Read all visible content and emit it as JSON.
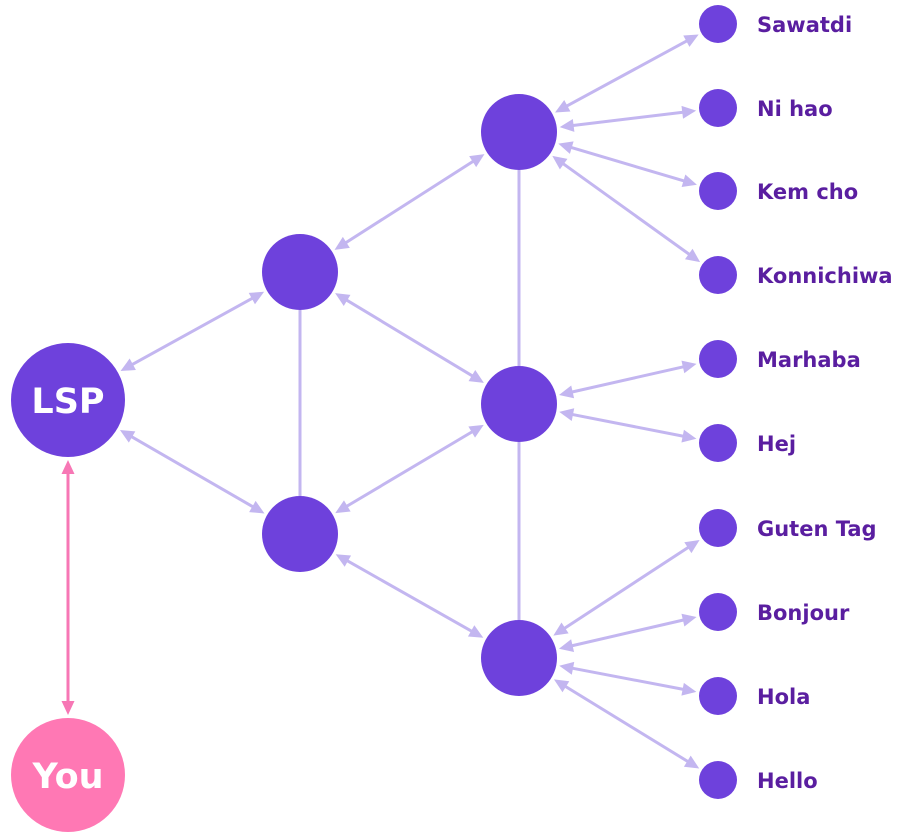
{
  "colors": {
    "node": "#6e41dc",
    "you": "#ff78b4",
    "edge": "#c3b6f0",
    "you_edge": "#f777b5",
    "label": "#5a1ea0",
    "node_text": "#ffffff"
  },
  "nodes": {
    "lsp": {
      "label": "LSP"
    },
    "you": {
      "label": "You"
    },
    "a": {
      "label": ""
    },
    "b": {
      "label": ""
    },
    "c": {
      "label": ""
    },
    "d": {
      "label": ""
    },
    "e": {
      "label": ""
    }
  },
  "leaves": [
    {
      "label": "Sawatdi",
      "parent": "c"
    },
    {
      "label": "Ni hao",
      "parent": "c"
    },
    {
      "label": "Kem cho",
      "parent": "c"
    },
    {
      "label": "Konnichiwa",
      "parent": "c"
    },
    {
      "label": "Marhaba",
      "parent": "d"
    },
    {
      "label": "Hej",
      "parent": "d"
    },
    {
      "label": "Guten Tag",
      "parent": "e"
    },
    {
      "label": "Bonjour",
      "parent": "e"
    },
    {
      "label": "Hola",
      "parent": "e"
    },
    {
      "label": "Hello",
      "parent": "e"
    }
  ],
  "edges": [
    {
      "from": "lsp",
      "to": "you",
      "arrows": "both",
      "style": "you"
    },
    {
      "from": "lsp",
      "to": "a",
      "arrows": "both"
    },
    {
      "from": "lsp",
      "to": "b",
      "arrows": "both"
    },
    {
      "from": "a",
      "to": "c",
      "arrows": "both"
    },
    {
      "from": "a",
      "to": "d",
      "arrows": "both"
    },
    {
      "from": "b",
      "to": "d",
      "arrows": "both"
    },
    {
      "from": "b",
      "to": "e",
      "arrows": "both"
    },
    {
      "from": "a",
      "to": "b",
      "arrows": "none"
    },
    {
      "from": "c",
      "to": "d",
      "arrows": "none"
    },
    {
      "from": "d",
      "to": "e",
      "arrows": "none"
    }
  ]
}
